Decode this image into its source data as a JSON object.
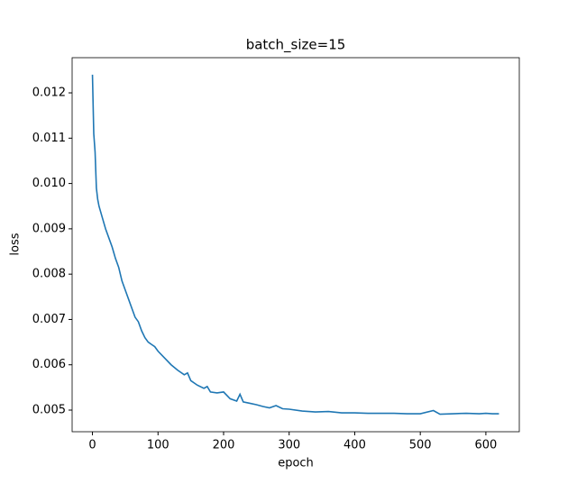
{
  "chart_data": {
    "type": "line",
    "title": "batch_size=15",
    "xlabel": "epoch",
    "ylabel": "loss",
    "x": [
      0,
      2,
      4,
      6,
      8,
      10,
      15,
      20,
      25,
      30,
      35,
      40,
      45,
      50,
      55,
      60,
      65,
      70,
      75,
      80,
      85,
      90,
      95,
      100,
      110,
      120,
      130,
      140,
      145,
      150,
      160,
      170,
      175,
      180,
      190,
      200,
      210,
      220,
      225,
      230,
      240,
      250,
      260,
      270,
      280,
      290,
      300,
      320,
      340,
      360,
      380,
      400,
      420,
      440,
      460,
      480,
      500,
      520,
      530,
      550,
      570,
      590,
      600,
      610,
      620
    ],
    "series": [
      {
        "name": "loss",
        "color": "#1f77b4",
        "values": [
          0.0124,
          0.0111,
          0.0107,
          0.0099,
          0.00965,
          0.0095,
          0.00925,
          0.009,
          0.0088,
          0.0086,
          0.00835,
          0.00815,
          0.00785,
          0.00765,
          0.00745,
          0.00725,
          0.00705,
          0.00695,
          0.00675,
          0.0066,
          0.0065,
          0.00645,
          0.0064,
          0.0063,
          0.00615,
          0.006,
          0.00588,
          0.00578,
          0.00582,
          0.00565,
          0.00555,
          0.00548,
          0.00552,
          0.0054,
          0.00538,
          0.0054,
          0.00525,
          0.0052,
          0.00535,
          0.00518,
          0.00515,
          0.00512,
          0.00508,
          0.00505,
          0.0051,
          0.00503,
          0.00502,
          0.00498,
          0.00496,
          0.00497,
          0.00494,
          0.00494,
          0.00493,
          0.00493,
          0.00493,
          0.00492,
          0.00492,
          0.00499,
          0.00491,
          0.00492,
          0.00493,
          0.00492,
          0.00493,
          0.00492,
          0.00492
        ]
      }
    ],
    "xlim": [
      -31,
      651
    ],
    "ylim": [
      0.004523,
      0.012776
    ],
    "xticks": [
      0,
      100,
      200,
      300,
      400,
      500,
      600
    ],
    "yticks": [
      0.005,
      0.006,
      0.007,
      0.008,
      0.009,
      {
        "value": 0.01,
        "label": "0.010"
      },
      0.011,
      0.012
    ]
  }
}
